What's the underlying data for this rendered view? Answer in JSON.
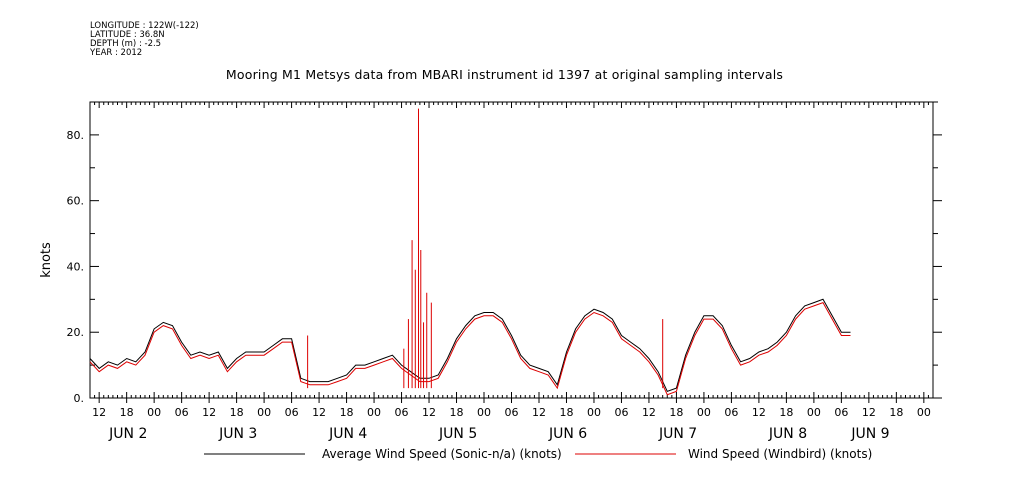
{
  "header": {
    "longitude": "LONGITUDE : 122W(-122)",
    "latitude": "LATITUDE : 36.8N",
    "depth": "DEPTH (m) : -2.5",
    "year": "YEAR : 2012"
  },
  "chart_data": {
    "type": "line",
    "title": "Mooring M1 Metsys data from MBARI instrument id 1397 at original sampling intervals",
    "ylabel": "knots",
    "ylim": [
      0,
      90
    ],
    "yticks": [
      0,
      20,
      40,
      60,
      80
    ],
    "ytick_labels": [
      "0.",
      "20.",
      "40.",
      "60.",
      "80."
    ],
    "x_unit": "hours since JUN 2 00:00 (2012)",
    "xlim": [
      -14,
      170
    ],
    "hour_ticks": [
      {
        "h": -12,
        "label": "12"
      },
      {
        "h": -6,
        "label": "18"
      },
      {
        "h": 0,
        "label": "00"
      },
      {
        "h": 6,
        "label": "06"
      },
      {
        "h": 12,
        "label": "12"
      },
      {
        "h": 18,
        "label": "18"
      },
      {
        "h": 24,
        "label": "00"
      },
      {
        "h": 30,
        "label": "06"
      },
      {
        "h": 36,
        "label": "12"
      },
      {
        "h": 42,
        "label": "18"
      },
      {
        "h": 48,
        "label": "00"
      },
      {
        "h": 54,
        "label": "06"
      },
      {
        "h": 60,
        "label": "12"
      },
      {
        "h": 66,
        "label": "18"
      },
      {
        "h": 72,
        "label": "00"
      },
      {
        "h": 78,
        "label": "06"
      },
      {
        "h": 84,
        "label": "12"
      },
      {
        "h": 90,
        "label": "18"
      },
      {
        "h": 96,
        "label": "00"
      },
      {
        "h": 102,
        "label": "06"
      },
      {
        "h": 108,
        "label": "12"
      },
      {
        "h": 114,
        "label": "18"
      },
      {
        "h": 120,
        "label": "00"
      },
      {
        "h": 126,
        "label": "06"
      },
      {
        "h": 132,
        "label": "12"
      },
      {
        "h": 138,
        "label": "18"
      },
      {
        "h": 144,
        "label": "00"
      },
      {
        "h": 150,
        "label": "06"
      },
      {
        "h": 156,
        "label": "12"
      },
      {
        "h": 162,
        "label": "18"
      },
      {
        "h": 168,
        "label": "00"
      }
    ],
    "day_labels": [
      {
        "h": -12,
        "label": "JUN  2"
      },
      {
        "h": 12,
        "label": "JUN  3"
      },
      {
        "h": 36,
        "label": "JUN  4"
      },
      {
        "h": 60,
        "label": "JUN  5"
      },
      {
        "h": 84,
        "label": "JUN  6"
      },
      {
        "h": 108,
        "label": "JUN  7"
      },
      {
        "h": 132,
        "label": "JUN  8"
      },
      {
        "h": 150,
        "label": "JUN  9"
      }
    ],
    "series": [
      {
        "name": "Average Wind Speed (Sonic-n/a) (knots)",
        "color": "#000000",
        "points": [
          [
            -14,
            12
          ],
          [
            -12,
            9
          ],
          [
            -10,
            11
          ],
          [
            -8,
            10
          ],
          [
            -6,
            12
          ],
          [
            -4,
            11
          ],
          [
            -2,
            14
          ],
          [
            0,
            21
          ],
          [
            2,
            23
          ],
          [
            4,
            22
          ],
          [
            6,
            17
          ],
          [
            8,
            13
          ],
          [
            10,
            14
          ],
          [
            12,
            13
          ],
          [
            14,
            14
          ],
          [
            16,
            9
          ],
          [
            18,
            12
          ],
          [
            20,
            14
          ],
          [
            22,
            14
          ],
          [
            24,
            14
          ],
          [
            26,
            16
          ],
          [
            28,
            18
          ],
          [
            30,
            18
          ],
          [
            32,
            6
          ],
          [
            34,
            5
          ],
          [
            36,
            5
          ],
          [
            38,
            5
          ],
          [
            40,
            6
          ],
          [
            42,
            7
          ],
          [
            44,
            10
          ],
          [
            46,
            10
          ],
          [
            48,
            11
          ],
          [
            50,
            12
          ],
          [
            52,
            13
          ],
          [
            54,
            10
          ],
          [
            56,
            8
          ],
          [
            58,
            6
          ],
          [
            60,
            6
          ],
          [
            62,
            7
          ],
          [
            64,
            12
          ],
          [
            66,
            18
          ],
          [
            68,
            22
          ],
          [
            70,
            25
          ],
          [
            72,
            26
          ],
          [
            74,
            26
          ],
          [
            76,
            24
          ],
          [
            78,
            19
          ],
          [
            80,
            13
          ],
          [
            82,
            10
          ],
          [
            84,
            9
          ],
          [
            86,
            8
          ],
          [
            88,
            4
          ],
          [
            90,
            14
          ],
          [
            92,
            21
          ],
          [
            94,
            25
          ],
          [
            96,
            27
          ],
          [
            98,
            26
          ],
          [
            100,
            24
          ],
          [
            102,
            19
          ],
          [
            104,
            17
          ],
          [
            106,
            15
          ],
          [
            108,
            12
          ],
          [
            110,
            8
          ],
          [
            112,
            2
          ],
          [
            114,
            3
          ],
          [
            116,
            13
          ],
          [
            118,
            20
          ],
          [
            120,
            25
          ],
          [
            122,
            25
          ],
          [
            124,
            22
          ],
          [
            126,
            16
          ],
          [
            128,
            11
          ],
          [
            130,
            12
          ],
          [
            132,
            14
          ],
          [
            134,
            15
          ],
          [
            136,
            17
          ],
          [
            138,
            20
          ],
          [
            140,
            25
          ],
          [
            142,
            28
          ],
          [
            144,
            29
          ],
          [
            146,
            30
          ],
          [
            148,
            25
          ],
          [
            150,
            20
          ],
          [
            152,
            20
          ]
        ]
      },
      {
        "name": "Wind Speed (Windbird) (knots)",
        "color": "#dd0000",
        "points": [
          [
            -14,
            11
          ],
          [
            -12,
            8
          ],
          [
            -10,
            10
          ],
          [
            -8,
            9
          ],
          [
            -6,
            11
          ],
          [
            -4,
            10
          ],
          [
            -2,
            13
          ],
          [
            0,
            20
          ],
          [
            2,
            22
          ],
          [
            4,
            21
          ],
          [
            6,
            16
          ],
          [
            8,
            12
          ],
          [
            10,
            13
          ],
          [
            12,
            12
          ],
          [
            14,
            13
          ],
          [
            16,
            8
          ],
          [
            18,
            11
          ],
          [
            20,
            13
          ],
          [
            22,
            13
          ],
          [
            24,
            13
          ],
          [
            26,
            15
          ],
          [
            28,
            17
          ],
          [
            30,
            17
          ],
          [
            32,
            5
          ],
          [
            34,
            4
          ],
          [
            36,
            4
          ],
          [
            38,
            4
          ],
          [
            40,
            5
          ],
          [
            42,
            6
          ],
          [
            44,
            9
          ],
          [
            46,
            9
          ],
          [
            48,
            10
          ],
          [
            50,
            11
          ],
          [
            52,
            12
          ],
          [
            54,
            9
          ],
          [
            56,
            7
          ],
          [
            58,
            5
          ],
          [
            60,
            5
          ],
          [
            62,
            6
          ],
          [
            64,
            11
          ],
          [
            66,
            17
          ],
          [
            68,
            21
          ],
          [
            70,
            24
          ],
          [
            72,
            25
          ],
          [
            74,
            25
          ],
          [
            76,
            23
          ],
          [
            78,
            18
          ],
          [
            80,
            12
          ],
          [
            82,
            9
          ],
          [
            84,
            8
          ],
          [
            86,
            7
          ],
          [
            88,
            3
          ],
          [
            90,
            13
          ],
          [
            92,
            20
          ],
          [
            94,
            24
          ],
          [
            96,
            26
          ],
          [
            98,
            25
          ],
          [
            100,
            23
          ],
          [
            102,
            18
          ],
          [
            104,
            16
          ],
          [
            106,
            14
          ],
          [
            108,
            11
          ],
          [
            110,
            7
          ],
          [
            112,
            1
          ],
          [
            114,
            2
          ],
          [
            116,
            12
          ],
          [
            118,
            19
          ],
          [
            120,
            24
          ],
          [
            122,
            24
          ],
          [
            124,
            21
          ],
          [
            126,
            15
          ],
          [
            128,
            10
          ],
          [
            130,
            11
          ],
          [
            132,
            13
          ],
          [
            134,
            14
          ],
          [
            136,
            16
          ],
          [
            138,
            19
          ],
          [
            140,
            24
          ],
          [
            142,
            27
          ],
          [
            144,
            28
          ],
          [
            146,
            29
          ],
          [
            148,
            24
          ],
          [
            150,
            19
          ],
          [
            152,
            19
          ]
        ],
        "spikes": [
          [
            33.5,
            19
          ],
          [
            54.5,
            15
          ],
          [
            55.5,
            24
          ],
          [
            56.3,
            48
          ],
          [
            57,
            39
          ],
          [
            57.7,
            88
          ],
          [
            58.2,
            45
          ],
          [
            58.8,
            23
          ],
          [
            59.5,
            32
          ],
          [
            60.5,
            29
          ],
          [
            111,
            24
          ]
        ]
      }
    ]
  }
}
